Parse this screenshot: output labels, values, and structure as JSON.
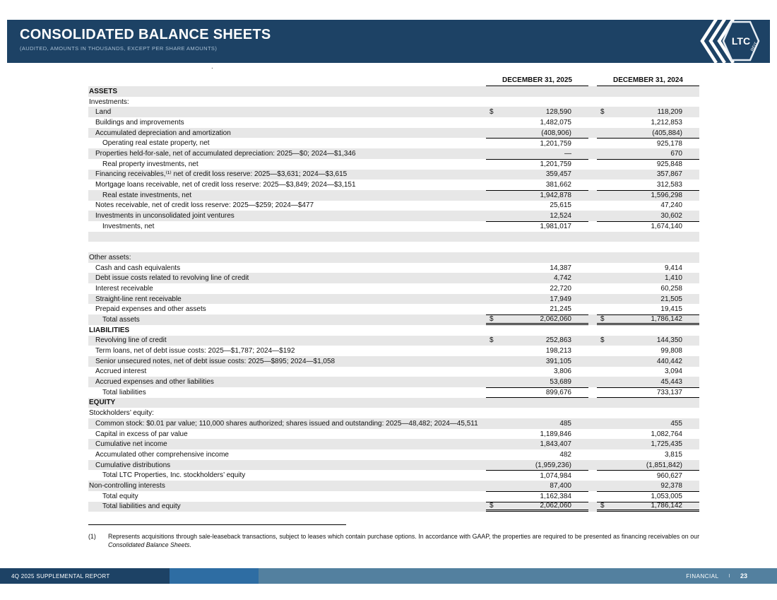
{
  "colors": {
    "banner": "#1d4265",
    "stripe": "#e7e7e7",
    "footer_left": "#1d4265",
    "footer_mid": "#2e6da3",
    "footer_right": "#53809f"
  },
  "header": {
    "title": "CONSOLIDATED BALANCE SHEETS",
    "subtitle": "(AUDITED, AMOUNTS IN THOUSANDS, EXCEPT PER SHARE AMOUNTS)",
    "logo_text": "LTC",
    "logo_sub": "REIT"
  },
  "stray_dot": ".",
  "table": {
    "columns": [
      "DECEMBER 31, 2025",
      "DECEMBER 31, 2024"
    ],
    "rows": [
      {
        "label": "ASSETS",
        "type": "section",
        "indent": 0,
        "shade": true
      },
      {
        "label": "Investments:",
        "indent": 0,
        "shade": false
      },
      {
        "label": "Land",
        "indent": 1,
        "shade": true,
        "d1": "$",
        "v1": "128,590",
        "d2": "$",
        "v2": "118,209"
      },
      {
        "label": "Buildings and improvements",
        "indent": 1,
        "shade": false,
        "v1": "1,482,075",
        "v2": "1,212,853"
      },
      {
        "label": "Accumulated depreciation and amortization",
        "indent": 1,
        "shade": true,
        "v1": "(408,906)",
        "v2": "(405,884)"
      },
      {
        "label": "Operating real estate property, net",
        "indent": 2,
        "shade": false,
        "v1": "1,201,759",
        "v2": "925,178",
        "line": "lt"
      },
      {
        "label": "Properties held-for-sale, net of accumulated depreciation: 2025—$0; 2024—$1,346",
        "indent": 1,
        "shade": true,
        "v1": "—",
        "v2": "670"
      },
      {
        "label": "Real property investments, net",
        "indent": 2,
        "shade": false,
        "v1": "1,201,759",
        "v2": "925,848",
        "line": "lt"
      },
      {
        "label": "Financing receivables,⁽¹⁾ net of credit loss reserve:  2025—$3,631; 2024—$3,615",
        "indent": 1,
        "shade": true,
        "v1": "359,457",
        "v2": "357,867"
      },
      {
        "label": "Mortgage loans receivable, net of credit loss reserve: 2025—$3,849; 2024—$3,151",
        "indent": 1,
        "shade": false,
        "v1": "381,662",
        "v2": "312,583"
      },
      {
        "label": "Real estate investments, net",
        "indent": 2,
        "shade": true,
        "v1": "1,942,878",
        "v2": "1,596,298",
        "line": "lt"
      },
      {
        "label": "Notes receivable, net of credit loss reserve: 2025—$259; 2024—$477",
        "indent": 1,
        "shade": false,
        "v1": "25,615",
        "v2": "47,240"
      },
      {
        "label": "Investments in unconsolidated joint ventures",
        "indent": 1,
        "shade": true,
        "v1": "12,524",
        "v2": "30,602"
      },
      {
        "label": "Investments, net",
        "indent": 2,
        "shade": false,
        "v1": "1,981,017",
        "v2": "1,674,140",
        "line": "lt"
      },
      {
        "label": "",
        "indent": 0,
        "shade": true
      },
      {
        "label": "",
        "indent": 0,
        "shade": false
      },
      {
        "label": "Other assets:",
        "indent": 0,
        "shade": true
      },
      {
        "label": "Cash and cash equivalents",
        "indent": 1,
        "shade": false,
        "v1": "14,387",
        "v2": "9,414"
      },
      {
        "label": "Debt issue costs related to revolving line of credit",
        "indent": 1,
        "shade": true,
        "v1": "4,742",
        "v2": "1,410"
      },
      {
        "label": "Interest receivable",
        "indent": 1,
        "shade": false,
        "v1": "22,720",
        "v2": "60,258"
      },
      {
        "label": "Straight-line rent receivable",
        "indent": 1,
        "shade": true,
        "v1": "17,949",
        "v2": "21,505"
      },
      {
        "label": "Prepaid expenses and other assets",
        "indent": 1,
        "shade": false,
        "v1": "21,245",
        "v2": "19,415"
      },
      {
        "label": "Total assets",
        "indent": 2,
        "shade": true,
        "d1": "$",
        "v1": "2,062,060",
        "d2": "$",
        "v2": "1,786,142",
        "line": "lt dbl"
      },
      {
        "label": "LIABILITIES",
        "type": "section",
        "indent": 0,
        "shade": false
      },
      {
        "label": "Revolving line of credit",
        "indent": 1,
        "shade": true,
        "d1": "$",
        "v1": "252,863",
        "d2": "$",
        "v2": "144,350"
      },
      {
        "label": "Term loans, net of debt issue costs: 2025—$1,787; 2024—$192",
        "indent": 1,
        "shade": false,
        "v1": "198,213",
        "v2": "99,808"
      },
      {
        "label": "Senior unsecured notes, net of debt issue costs: 2025—$895; 2024—$1,058",
        "indent": 1,
        "shade": true,
        "v1": "391,105",
        "v2": "440,442"
      },
      {
        "label": "Accrued interest",
        "indent": 1,
        "shade": false,
        "v1": "3,806",
        "v2": "3,094"
      },
      {
        "label": "Accrued expenses and other liabilities",
        "indent": 1,
        "shade": true,
        "v1": "53,689",
        "v2": "45,443"
      },
      {
        "label": "Total liabilities",
        "indent": 2,
        "shade": false,
        "v1": "899,676",
        "v2": "733,137",
        "line": "lt lb"
      },
      {
        "label": "EQUITY",
        "type": "section",
        "indent": 0,
        "shade": true
      },
      {
        "label": "Stockholders’ equity:",
        "indent": 0,
        "shade": false
      },
      {
        "label": "Common stock: $0.01 par value; 110,000 shares authorized; shares issued and outstanding: 2025—48,482; 2024—45,511",
        "indent": 1,
        "shade": true,
        "v1": "485",
        "v2": "455"
      },
      {
        "label": "Capital in excess of par value",
        "indent": 1,
        "shade": false,
        "v1": "1,189,846",
        "v2": "1,082,764"
      },
      {
        "label": "Cumulative net income",
        "indent": 1,
        "shade": true,
        "v1": "1,843,407",
        "v2": "1,725,435"
      },
      {
        "label": "Accumulated other comprehensive income",
        "indent": 1,
        "shade": false,
        "v1": "482",
        "v2": "3,815"
      },
      {
        "label": "Cumulative distributions",
        "indent": 1,
        "shade": true,
        "v1": "(1,959,236)",
        "v2": "(1,851,842)"
      },
      {
        "label": "Total LTC Properties, Inc. stockholders’ equity",
        "indent": 2,
        "shade": false,
        "v1": "1,074,984",
        "v2": "960,627",
        "line": "lt"
      },
      {
        "label": "Non-controlling interests",
        "indent": 0,
        "shade": true,
        "v1": "87,400",
        "v2": "92,378"
      },
      {
        "label": "Total equity",
        "indent": 2,
        "shade": false,
        "v1": "1,162,384",
        "v2": "1,053,005",
        "line": "lt"
      },
      {
        "label": "Total liabilities and equity",
        "indent": 2,
        "shade": true,
        "d1": "$",
        "v1": "2,062,060",
        "d2": "$",
        "v2": "1,786,142",
        "line": "lt dbl"
      }
    ]
  },
  "footnote": {
    "marker": "(1)",
    "text": "Represents acquisitions through sale-leaseback transactions, subject to leases which contain purchase options. In accordance with GAAP, the properties are required to be presented as financing receivables on our ",
    "italic": "Consolidated Balance Sheets",
    "end": "."
  },
  "footer": {
    "left": "4Q 2025 SUPPLEMENTAL REPORT",
    "section": "FINANCIAL",
    "divider": "I",
    "page": "23"
  }
}
